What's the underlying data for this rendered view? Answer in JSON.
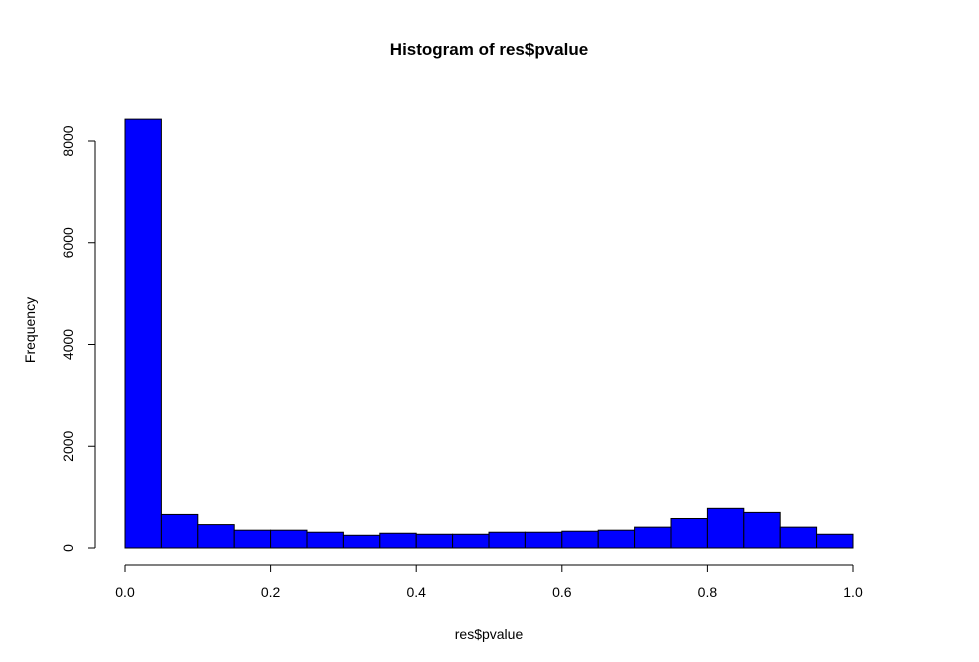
{
  "chart_data": {
    "type": "bar",
    "title": "Histogram of res$pvalue",
    "xlabel": "res$pvalue",
    "ylabel": "Frequency",
    "xlim": [
      0,
      1
    ],
    "ylim": [
      0,
      8450
    ],
    "bin_width": 0.05,
    "bins": [
      {
        "x0": 0.0,
        "x1": 0.05,
        "count": 8430
      },
      {
        "x0": 0.05,
        "x1": 0.1,
        "count": 660
      },
      {
        "x0": 0.1,
        "x1": 0.15,
        "count": 460
      },
      {
        "x0": 0.15,
        "x1": 0.2,
        "count": 350
      },
      {
        "x0": 0.2,
        "x1": 0.25,
        "count": 350
      },
      {
        "x0": 0.25,
        "x1": 0.3,
        "count": 310
      },
      {
        "x0": 0.3,
        "x1": 0.35,
        "count": 250
      },
      {
        "x0": 0.35,
        "x1": 0.4,
        "count": 290
      },
      {
        "x0": 0.4,
        "x1": 0.45,
        "count": 270
      },
      {
        "x0": 0.45,
        "x1": 0.5,
        "count": 270
      },
      {
        "x0": 0.5,
        "x1": 0.55,
        "count": 310
      },
      {
        "x0": 0.55,
        "x1": 0.6,
        "count": 310
      },
      {
        "x0": 0.6,
        "x1": 0.65,
        "count": 330
      },
      {
        "x0": 0.65,
        "x1": 0.7,
        "count": 350
      },
      {
        "x0": 0.7,
        "x1": 0.75,
        "count": 410
      },
      {
        "x0": 0.75,
        "x1": 0.8,
        "count": 580
      },
      {
        "x0": 0.8,
        "x1": 0.85,
        "count": 780
      },
      {
        "x0": 0.85,
        "x1": 0.9,
        "count": 700
      },
      {
        "x0": 0.9,
        "x1": 0.95,
        "count": 410
      },
      {
        "x0": 0.95,
        "x1": 1.0,
        "count": 270
      }
    ],
    "x_ticks": [
      {
        "value": 0.0,
        "label": "0.0"
      },
      {
        "value": 0.2,
        "label": "0.2"
      },
      {
        "value": 0.4,
        "label": "0.4"
      },
      {
        "value": 0.6,
        "label": "0.6"
      },
      {
        "value": 0.8,
        "label": "0.8"
      },
      {
        "value": 1.0,
        "label": "1.0"
      }
    ],
    "y_ticks": [
      {
        "value": 0,
        "label": "0"
      },
      {
        "value": 2000,
        "label": "2000"
      },
      {
        "value": 4000,
        "label": "4000"
      },
      {
        "value": 6000,
        "label": "6000"
      },
      {
        "value": 8000,
        "label": "8000"
      }
    ],
    "bar_color": "#0000ff",
    "bar_border_color": "#000000",
    "grid": false
  }
}
